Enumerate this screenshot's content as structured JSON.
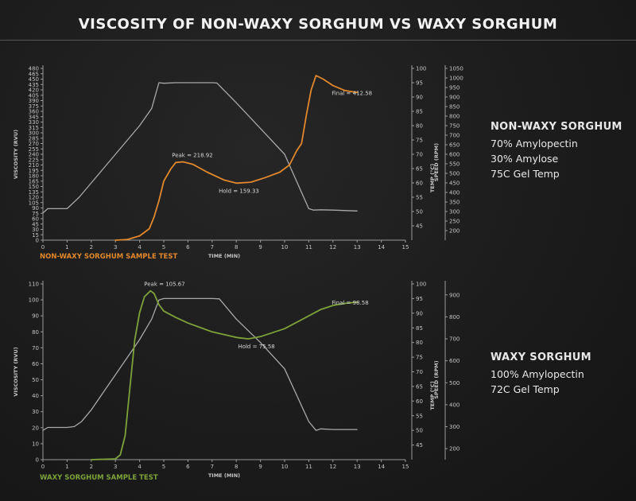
{
  "title": "VISCOSITY OF NON-WAXY SORGHUM VS WAXY SORGHUM",
  "colors": {
    "background": "#1c1c1c",
    "axis": "#9a9a9a",
    "temp_line": "#a9a9a9",
    "nonwaxy": "#e2882c",
    "waxy": "#7ea23a"
  },
  "info_panels": [
    {
      "heading": "NON-WAXY SORGHUM",
      "lines": [
        "70% Amylopectin",
        "30% Amylose",
        "75C Gel Temp"
      ]
    },
    {
      "heading": "WAXY SORGHUM",
      "lines": [
        "100% Amylopectin",
        "72C Gel Temp"
      ]
    }
  ],
  "chart_data": [
    {
      "type": "line",
      "sample_label": "NON-WAXY SORGHUM SAMPLE TEST",
      "xlabel": "TIME (MIN)",
      "ylabel": "VISCOSITY (RVU)",
      "y2label": "TEMP (°C)",
      "y3label": "SPEED (RPM)",
      "xlim": [
        0,
        15
      ],
      "x_ticks": [
        0,
        1,
        2,
        3,
        4,
        5,
        6,
        7,
        8,
        9,
        10,
        11,
        12,
        13,
        14,
        15
      ],
      "ylim": [
        0,
        480
      ],
      "y_ticks": [
        0,
        15,
        30,
        45,
        60,
        75,
        90,
        105,
        120,
        135,
        150,
        165,
        180,
        195,
        210,
        225,
        240,
        255,
        270,
        285,
        300,
        315,
        330,
        345,
        360,
        375,
        390,
        405,
        420,
        435,
        450,
        465,
        480
      ],
      "y_tick_labels": [
        "0",
        "15",
        "30",
        "45",
        "60",
        "75",
        "90",
        "105",
        "120",
        "135",
        "150",
        "165",
        "180",
        "195",
        "210",
        "225",
        "240",
        "255",
        "270",
        "285",
        "300",
        "315",
        "330",
        "345",
        "360",
        "375",
        "390",
        "405",
        "420",
        "435",
        "450",
        "465",
        "480"
      ],
      "y2lim": [
        40,
        100
      ],
      "y2_ticks": [
        45,
        50,
        55,
        60,
        65,
        70,
        75,
        80,
        85,
        90,
        95,
        100
      ],
      "y3lim": [
        150,
        1050
      ],
      "y3_ticks": [
        200,
        250,
        300,
        350,
        400,
        450,
        500,
        550,
        600,
        650,
        700,
        750,
        800,
        850,
        900,
        950,
        1000,
        1050
      ],
      "grid": false,
      "series": [
        {
          "axis": "y2",
          "color": "#a9a9a9",
          "x": [
            0,
            0.2,
            0.4,
            0.6,
            1.0,
            1.5,
            2.0,
            2.5,
            3.0,
            3.5,
            4.0,
            4.5,
            4.8,
            5.0,
            5.5,
            6.0,
            7.0,
            7.2,
            8.0,
            9.0,
            10.0,
            11.0,
            11.2,
            11.5,
            12.0,
            13.0
          ],
          "y": [
            49.5,
            51,
            51,
            51,
            51,
            55,
            60,
            65,
            70,
            75,
            80,
            86,
            95,
            94.8,
            95,
            95,
            95,
            94.9,
            88,
            79,
            70,
            51,
            50.5,
            50.6,
            50.5,
            50.2
          ]
        },
        {
          "axis": "y",
          "color": "#e2882c",
          "x": [
            3.0,
            3.5,
            4.0,
            4.4,
            4.6,
            4.8,
            5.0,
            5.3,
            5.5,
            5.8,
            6.2,
            6.8,
            7.5,
            8.0,
            8.6,
            9.2,
            9.8,
            10.2,
            10.5,
            10.7,
            10.9,
            11.1,
            11.3,
            11.6,
            12.0,
            12.5,
            13.0
          ],
          "y": [
            0,
            2,
            12,
            32,
            65,
            110,
            165,
            200,
            217,
            218.9,
            212,
            190,
            168,
            159.3,
            162,
            175,
            190,
            210,
            250,
            270,
            350,
            420,
            460,
            450,
            432,
            418,
            412.6
          ]
        }
      ],
      "annotations": [
        {
          "text": "Peak = 218.92",
          "x": 5.6,
          "y": 218.92
        },
        {
          "text": "Hold = 159.33",
          "x": 7.8,
          "y": 159.33
        },
        {
          "text": "Final = 412.58",
          "x": 13.0,
          "y": 412.58
        }
      ]
    },
    {
      "type": "line",
      "sample_label": "WAXY SORGHUM SAMPLE TEST",
      "xlabel": "TIME (MIN)",
      "ylabel": "VISCOSITY (RVU)",
      "y2label": "TEMP (°C)",
      "y3label": "SPEED (RPM)",
      "xlim": [
        0,
        15
      ],
      "x_ticks": [
        0,
        1,
        2,
        3,
        4,
        5,
        6,
        7,
        8,
        9,
        10,
        11,
        12,
        13,
        14,
        15
      ],
      "ylim": [
        0,
        110
      ],
      "y_ticks": [
        0,
        10,
        20,
        30,
        40,
        50,
        60,
        70,
        80,
        90,
        100,
        110
      ],
      "y_tick_labels": [
        "0",
        "10",
        "20",
        "30",
        "40",
        "50",
        "60",
        "70",
        "80",
        "90",
        "100",
        "110"
      ],
      "y2lim": [
        40,
        100
      ],
      "y2_ticks": [
        45,
        50,
        55,
        60,
        65,
        70,
        75,
        80,
        85,
        90,
        95,
        100
      ],
      "y3lim": [
        150,
        950
      ],
      "y3_ticks": [
        200,
        300,
        400,
        500,
        600,
        700,
        800,
        900
      ],
      "grid": false,
      "series": [
        {
          "axis": "y2",
          "color": "#a9a9a9",
          "x": [
            0,
            0.2,
            0.5,
            1.0,
            1.3,
            1.6,
            2.0,
            2.5,
            3.0,
            3.5,
            4.0,
            4.5,
            4.8,
            5.0,
            7.0,
            7.3,
            8.0,
            9.0,
            10.0,
            11.0,
            11.3,
            11.5,
            12.0,
            13.0
          ],
          "y": [
            50,
            51,
            51,
            51,
            51.3,
            53,
            57,
            63,
            69,
            75,
            81,
            88,
            94.5,
            95,
            95,
            94.9,
            88,
            80,
            71,
            53,
            50,
            50.5,
            50.3,
            50.3
          ]
        },
        {
          "axis": "y",
          "color": "#7ea23a",
          "x": [
            2.0,
            3.0,
            3.2,
            3.4,
            3.6,
            3.8,
            4.0,
            4.2,
            4.45,
            4.6,
            4.8,
            5.0,
            5.5,
            6.0,
            7.0,
            8.0,
            8.5,
            9.0,
            10.0,
            11.0,
            11.5,
            12.0,
            12.5,
            13.0
          ],
          "y": [
            0,
            0.5,
            3,
            15,
            45,
            75,
            92,
            102,
            105.67,
            104,
            97,
            93,
            89,
            85.5,
            80,
            76.5,
            75.6,
            77,
            82,
            90,
            94,
            96.5,
            97.8,
            98.6
          ]
        }
      ],
      "annotations": [
        {
          "text": "Peak = 105.67",
          "x": 4.45,
          "y": 105.67
        },
        {
          "text": "Hold = 75.58",
          "x": 8.6,
          "y": 75.58
        },
        {
          "text": "Final = 98.58",
          "x": 13.0,
          "y": 98.58
        }
      ]
    }
  ]
}
